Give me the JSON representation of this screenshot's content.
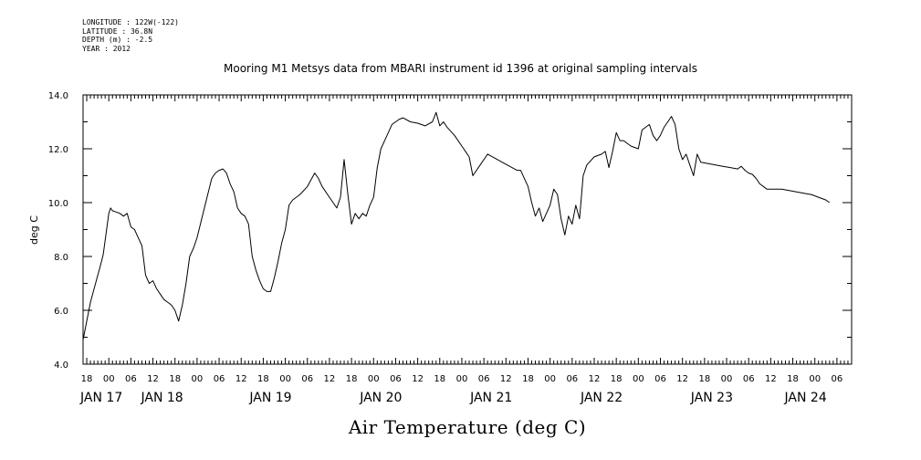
{
  "meta": {
    "longitude": "LONGITUDE : 122W(-122)",
    "latitude": "LATITUDE : 36.8N",
    "depth": "DEPTH (m) : -2.5",
    "year": "YEAR : 2012"
  },
  "chart_data": {
    "type": "line",
    "title": "Mooring M1 Metsys data from MBARI instrument id 1396 at original sampling intervals",
    "xlabel": "Air Temperature (deg C)",
    "ylabel": "deg C",
    "ylim": [
      4.0,
      14.0
    ],
    "yticks": [
      "4.0",
      "6.0",
      "8.0",
      "10.0",
      "12.0",
      "14.0"
    ],
    "xlim_hours_from_jan17_00": [
      -7,
      202
    ],
    "hour_tick_labels": [
      {
        "t": -6,
        "label": "18"
      },
      {
        "t": 0,
        "label": "00"
      },
      {
        "t": 6,
        "label": "06"
      },
      {
        "t": 12,
        "label": "12"
      },
      {
        "t": 18,
        "label": "18"
      },
      {
        "t": 24,
        "label": "00"
      },
      {
        "t": 30,
        "label": "06"
      },
      {
        "t": 36,
        "label": "12"
      },
      {
        "t": 42,
        "label": "18"
      },
      {
        "t": 48,
        "label": "00"
      },
      {
        "t": 54,
        "label": "06"
      },
      {
        "t": 60,
        "label": "12"
      },
      {
        "t": 66,
        "label": "18"
      },
      {
        "t": 72,
        "label": "00"
      },
      {
        "t": 78,
        "label": "06"
      },
      {
        "t": 84,
        "label": "12"
      },
      {
        "t": 90,
        "label": "18"
      },
      {
        "t": 96,
        "label": "00"
      },
      {
        "t": 102,
        "label": "06"
      },
      {
        "t": 108,
        "label": "12"
      },
      {
        "t": 114,
        "label": "18"
      },
      {
        "t": 120,
        "label": "00"
      },
      {
        "t": 126,
        "label": "06"
      },
      {
        "t": 132,
        "label": "12"
      },
      {
        "t": 138,
        "label": "18"
      },
      {
        "t": 144,
        "label": "00"
      },
      {
        "t": 150,
        "label": "06"
      },
      {
        "t": 156,
        "label": "12"
      },
      {
        "t": 162,
        "label": "18"
      },
      {
        "t": 168,
        "label": "00"
      },
      {
        "t": 174,
        "label": "06"
      },
      {
        "t": 180,
        "label": "12"
      },
      {
        "t": 186,
        "label": "18"
      },
      {
        "t": 192,
        "label": "00"
      },
      {
        "t": 198,
        "label": "06"
      }
    ],
    "day_labels": [
      {
        "t": -2,
        "label": "JAN 17"
      },
      {
        "t": 14.5,
        "label": "JAN 18"
      },
      {
        "t": 44,
        "label": "JAN 19"
      },
      {
        "t": 74,
        "label": "JAN 20"
      },
      {
        "t": 104,
        "label": "JAN 21"
      },
      {
        "t": 134,
        "label": "JAN 22"
      },
      {
        "t": 164,
        "label": "JAN 23"
      },
      {
        "t": 189.5,
        "label": "JAN 24"
      }
    ],
    "series": [
      {
        "points": [
          [
            -7,
            4.9
          ],
          [
            -5,
            6.3
          ],
          [
            -2,
            7.8
          ],
          [
            -1.5,
            8.1
          ],
          [
            0,
            9.6
          ],
          [
            0.5,
            9.8
          ],
          [
            1,
            9.7
          ],
          [
            2,
            9.65
          ],
          [
            3,
            9.6
          ],
          [
            4,
            9.5
          ],
          [
            5,
            9.6
          ],
          [
            6,
            9.1
          ],
          [
            7,
            9.0
          ],
          [
            8,
            8.7
          ],
          [
            9,
            8.4
          ],
          [
            10,
            7.3
          ],
          [
            11,
            7.0
          ],
          [
            12,
            7.1
          ],
          [
            13,
            6.8
          ],
          [
            14,
            6.6
          ],
          [
            15,
            6.4
          ],
          [
            16,
            6.3
          ],
          [
            17,
            6.2
          ],
          [
            18,
            6.0
          ],
          [
            19,
            5.6
          ],
          [
            20,
            6.2
          ],
          [
            21,
            7.0
          ],
          [
            22,
            8.0
          ],
          [
            23,
            8.3
          ],
          [
            24,
            8.7
          ],
          [
            26,
            9.8
          ],
          [
            28,
            10.9
          ],
          [
            29,
            11.1
          ],
          [
            30,
            11.2
          ],
          [
            31,
            11.25
          ],
          [
            32,
            11.1
          ],
          [
            33,
            10.7
          ],
          [
            34,
            10.4
          ],
          [
            35,
            9.8
          ],
          [
            36,
            9.6
          ],
          [
            37,
            9.5
          ],
          [
            38,
            9.2
          ],
          [
            39,
            8.0
          ],
          [
            40,
            7.5
          ],
          [
            41,
            7.1
          ],
          [
            42,
            6.8
          ],
          [
            43,
            6.7
          ],
          [
            44,
            6.7
          ],
          [
            45,
            7.2
          ],
          [
            46,
            7.8
          ],
          [
            47,
            8.5
          ],
          [
            48,
            9.0
          ],
          [
            49,
            9.9
          ],
          [
            50,
            10.1
          ],
          [
            52,
            10.3
          ],
          [
            54,
            10.6
          ],
          [
            56,
            11.1
          ],
          [
            57,
            10.9
          ],
          [
            58,
            10.6
          ],
          [
            60,
            10.2
          ],
          [
            62,
            9.8
          ],
          [
            63,
            10.2
          ],
          [
            64,
            11.6
          ],
          [
            65,
            10.3
          ],
          [
            66,
            9.2
          ],
          [
            67,
            9.6
          ],
          [
            68,
            9.4
          ],
          [
            69,
            9.6
          ],
          [
            70,
            9.5
          ],
          [
            71,
            9.9
          ],
          [
            72,
            10.2
          ],
          [
            73,
            11.3
          ],
          [
            74,
            12.0
          ],
          [
            75,
            12.3
          ],
          [
            76,
            12.6
          ],
          [
            77,
            12.9
          ],
          [
            78,
            13.0
          ],
          [
            79,
            13.1
          ],
          [
            80,
            13.15
          ],
          [
            82,
            13.0
          ],
          [
            84,
            12.95
          ],
          [
            86,
            12.85
          ],
          [
            88,
            13.0
          ],
          [
            89,
            13.35
          ],
          [
            90,
            12.85
          ],
          [
            91,
            13.0
          ],
          [
            92,
            12.8
          ],
          [
            94,
            12.5
          ],
          [
            96,
            12.1
          ],
          [
            98,
            11.7
          ],
          [
            99,
            11.0
          ],
          [
            101,
            11.4
          ],
          [
            103,
            11.8
          ],
          [
            105,
            11.65
          ],
          [
            107,
            11.5
          ],
          [
            109,
            11.35
          ],
          [
            111,
            11.2
          ],
          [
            112,
            11.2
          ],
          [
            113,
            10.9
          ],
          [
            114,
            10.6
          ],
          [
            115,
            10.0
          ],
          [
            116,
            9.5
          ],
          [
            117,
            9.8
          ],
          [
            118,
            9.3
          ],
          [
            119,
            9.6
          ],
          [
            120,
            9.9
          ],
          [
            121,
            10.5
          ],
          [
            122,
            10.3
          ],
          [
            123,
            9.4
          ],
          [
            124,
            8.8
          ],
          [
            125,
            9.5
          ],
          [
            126,
            9.2
          ],
          [
            127,
            9.9
          ],
          [
            128,
            9.4
          ],
          [
            129,
            11.0
          ],
          [
            130,
            11.4
          ],
          [
            132,
            11.7
          ],
          [
            134,
            11.8
          ],
          [
            135,
            11.9
          ],
          [
            136,
            11.3
          ],
          [
            137,
            11.9
          ],
          [
            138,
            12.6
          ],
          [
            139,
            12.3
          ],
          [
            140,
            12.3
          ],
          [
            142,
            12.1
          ],
          [
            144,
            12.0
          ],
          [
            145,
            12.7
          ],
          [
            146,
            12.8
          ],
          [
            147,
            12.9
          ],
          [
            148,
            12.5
          ],
          [
            149,
            12.3
          ],
          [
            150,
            12.5
          ],
          [
            151,
            12.8
          ],
          [
            152,
            13.0
          ],
          [
            153,
            13.2
          ],
          [
            154,
            12.9
          ],
          [
            155,
            12.0
          ],
          [
            156,
            11.6
          ],
          [
            157,
            11.8
          ],
          [
            158,
            11.4
          ],
          [
            159,
            11.0
          ],
          [
            160,
            11.8
          ],
          [
            161,
            11.5
          ],
          [
            163,
            11.45
          ],
          [
            165,
            11.4
          ],
          [
            167,
            11.35
          ],
          [
            169,
            11.3
          ],
          [
            171,
            11.25
          ],
          [
            172,
            11.35
          ],
          [
            173,
            11.2
          ],
          [
            174,
            11.1
          ],
          [
            175,
            11.05
          ],
          [
            176,
            10.9
          ],
          [
            177,
            10.7
          ],
          [
            178,
            10.6
          ],
          [
            179,
            10.5
          ],
          [
            181,
            10.5
          ],
          [
            183,
            10.5
          ],
          [
            185,
            10.45
          ],
          [
            187,
            10.4
          ],
          [
            189,
            10.35
          ],
          [
            191,
            10.3
          ],
          [
            193,
            10.2
          ],
          [
            195,
            10.1
          ],
          [
            196,
            10.0
          ]
        ]
      }
    ]
  }
}
